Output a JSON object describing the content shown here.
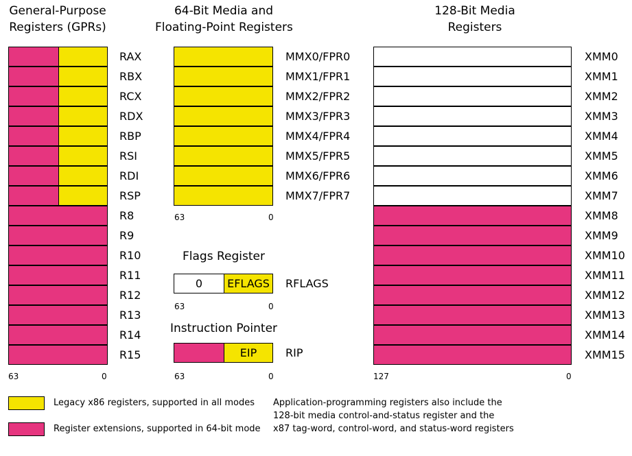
{
  "gpr": {
    "title_line1": "General-Purpose",
    "title_line2": "Registers (GPRs)",
    "legacy": [
      "RAX",
      "RBX",
      "RCX",
      "RDX",
      "RBP",
      "RSI",
      "RDI",
      "RSP"
    ],
    "extended": [
      "R8",
      "R9",
      "R10",
      "R11",
      "R12",
      "R13",
      "R14",
      "R15"
    ],
    "bit_high": "63",
    "bit_low": "0"
  },
  "mmx": {
    "title_line1": "64-Bit Media and",
    "title_line2": "Floating-Point Registers",
    "registers": [
      "MMX0/FPR0",
      "MMX1/FPR1",
      "MMX2/FPR2",
      "MMX3/FPR3",
      "MMX4/FPR4",
      "MMX5/FPR5",
      "MMX6/FPR6",
      "MMX7/FPR7"
    ],
    "bit_high": "63",
    "bit_low": "0"
  },
  "flags": {
    "title": "Flags Register",
    "upper_value": "0",
    "lower_label": "EFLAGS",
    "name": "RFLAGS",
    "bit_high": "63",
    "bit_low": "0"
  },
  "ip": {
    "title": "Instruction Pointer",
    "lower_label": "EIP",
    "name": "RIP",
    "bit_high": "63",
    "bit_low": "0"
  },
  "xmm": {
    "title_line1": "128-Bit Media",
    "title_line2": "Registers",
    "legacy": [
      "XMM0",
      "XMM1",
      "XMM2",
      "XMM3",
      "XMM4",
      "XMM5",
      "XMM6",
      "XMM7"
    ],
    "extended": [
      "XMM8",
      "XMM9",
      "XMM10",
      "XMM11",
      "XMM12",
      "XMM13",
      "XMM14",
      "XMM15"
    ],
    "bit_high": "127",
    "bit_low": "0"
  },
  "legend": {
    "legacy_text": "Legacy x86 registers, supported in all modes",
    "extension_text": "Register extensions, supported in 64-bit mode",
    "legacy_color": "#f5e400",
    "extension_color": "#e6357f"
  },
  "note": {
    "line1": "Application-programming registers also include the",
    "line2": "128-bit media control-and-status register and the",
    "line3": "x87 tag-word, control-word, and status-word registers"
  }
}
